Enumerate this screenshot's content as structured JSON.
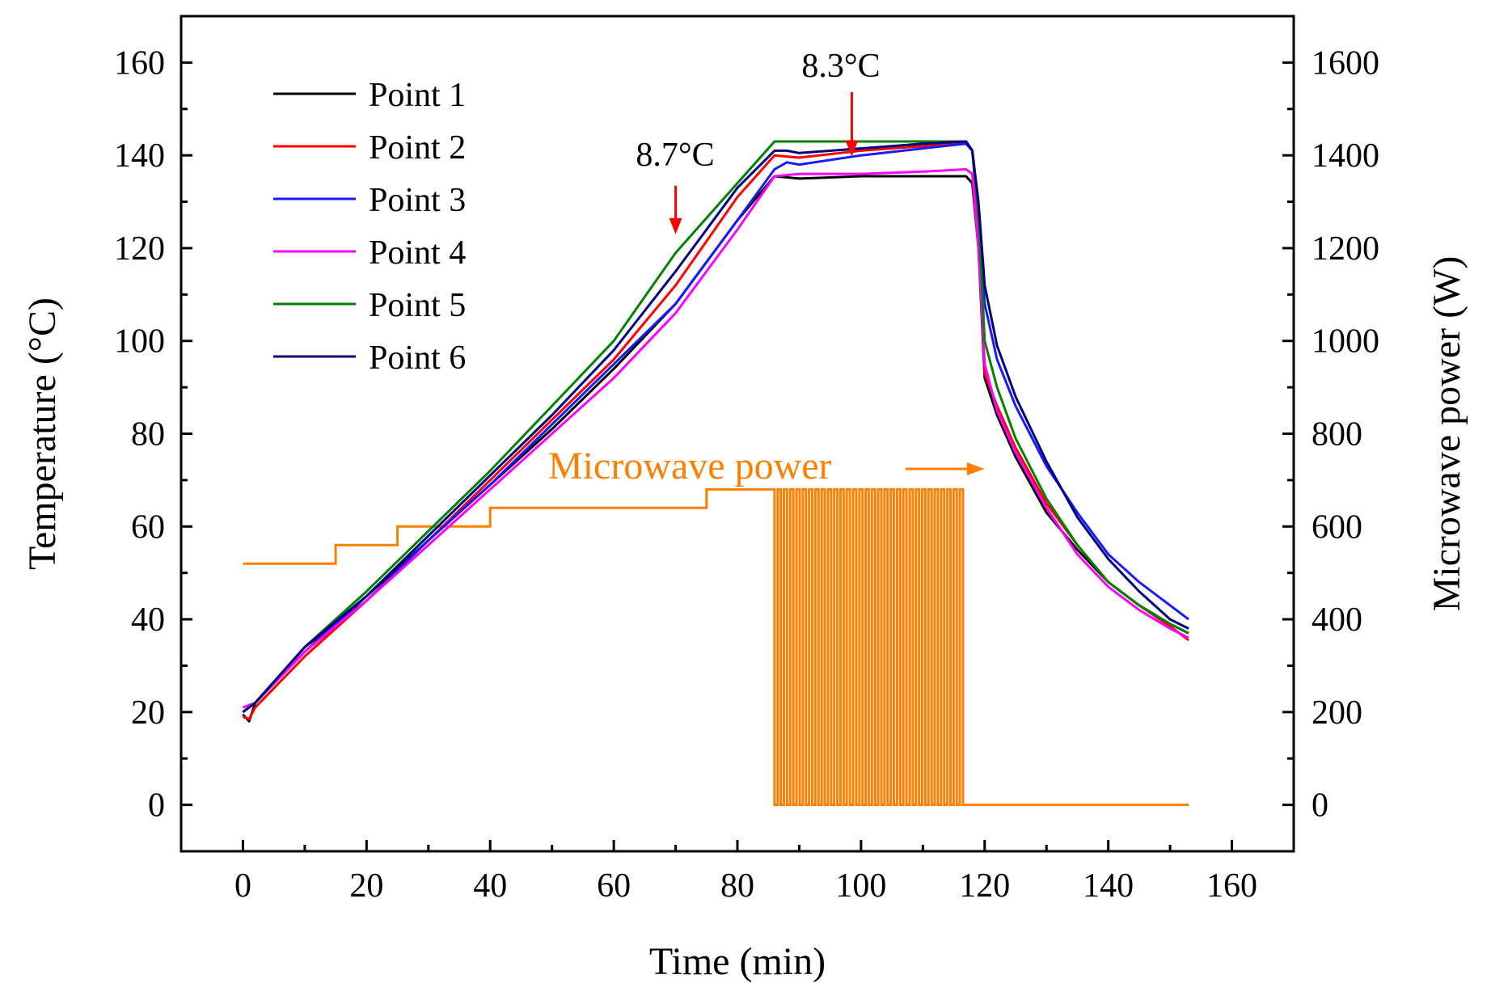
{
  "chart_data": {
    "type": "line",
    "title": "",
    "xlabel": "Time (min)",
    "ylabel": "Temperature (°C)",
    "y2label": "Microwave power (W)",
    "xlim": [
      -10,
      170
    ],
    "ylim": [
      -10,
      170
    ],
    "y2lim": [
      -100,
      1700
    ],
    "xticks": [
      0,
      20,
      40,
      60,
      80,
      100,
      120,
      140,
      160
    ],
    "yticks": [
      0,
      20,
      40,
      60,
      80,
      100,
      120,
      140,
      160
    ],
    "y2ticks": [
      0,
      200,
      400,
      600,
      800,
      1000,
      1200,
      1400,
      1600
    ],
    "legend_position": "top-left",
    "series": [
      {
        "name": "Point 1",
        "color": "#000000",
        "points": [
          [
            0,
            19.5
          ],
          [
            1,
            18
          ],
          [
            2,
            22
          ],
          [
            10,
            33
          ],
          [
            20,
            45
          ],
          [
            30,
            57
          ],
          [
            40,
            69
          ],
          [
            50,
            81
          ],
          [
            60,
            94
          ],
          [
            70,
            108
          ],
          [
            80,
            126
          ],
          [
            86,
            135.5
          ],
          [
            90,
            135
          ],
          [
            100,
            135.5
          ],
          [
            110,
            135.5
          ],
          [
            117,
            135.5
          ],
          [
            118,
            134
          ],
          [
            119,
            120
          ],
          [
            120,
            92
          ],
          [
            122,
            84
          ],
          [
            125,
            75
          ],
          [
            130,
            63
          ],
          [
            135,
            55
          ],
          [
            140,
            48
          ],
          [
            145,
            43
          ],
          [
            150,
            39
          ],
          [
            153,
            37
          ]
        ]
      },
      {
        "name": "Point 2",
        "color": "#ff0000",
        "points": [
          [
            0,
            19
          ],
          [
            1,
            18.5
          ],
          [
            2,
            21
          ],
          [
            10,
            32
          ],
          [
            20,
            44
          ],
          [
            30,
            57
          ],
          [
            40,
            70
          ],
          [
            50,
            83
          ],
          [
            60,
            96
          ],
          [
            70,
            112
          ],
          [
            80,
            131
          ],
          [
            86,
            140
          ],
          [
            90,
            139.5
          ],
          [
            100,
            141
          ],
          [
            110,
            142
          ],
          [
            117,
            142.5
          ],
          [
            118,
            141
          ],
          [
            119,
            125
          ],
          [
            120,
            93
          ],
          [
            122,
            86
          ],
          [
            125,
            77
          ],
          [
            130,
            65
          ],
          [
            135,
            56
          ],
          [
            140,
            48
          ],
          [
            145,
            43
          ],
          [
            150,
            38.5
          ],
          [
            153,
            35.5
          ]
        ]
      },
      {
        "name": "Point 3",
        "color": "#1a1aff",
        "points": [
          [
            0,
            20
          ],
          [
            2,
            22
          ],
          [
            10,
            34
          ],
          [
            20,
            44
          ],
          [
            30,
            57
          ],
          [
            40,
            69
          ],
          [
            50,
            82
          ],
          [
            60,
            95
          ],
          [
            70,
            108
          ],
          [
            80,
            126
          ],
          [
            86,
            137
          ],
          [
            88,
            138.5
          ],
          [
            90,
            138
          ],
          [
            100,
            140
          ],
          [
            110,
            141.5
          ],
          [
            117,
            142.5
          ],
          [
            118,
            141
          ],
          [
            119,
            128
          ],
          [
            120,
            108
          ],
          [
            122,
            96
          ],
          [
            125,
            86
          ],
          [
            130,
            73
          ],
          [
            135,
            63
          ],
          [
            140,
            54
          ],
          [
            145,
            48
          ],
          [
            150,
            43
          ],
          [
            153,
            40
          ]
        ]
      },
      {
        "name": "Point 4",
        "color": "#ff00ff",
        "points": [
          [
            0,
            21
          ],
          [
            2,
            22
          ],
          [
            10,
            33
          ],
          [
            20,
            44
          ],
          [
            30,
            56
          ],
          [
            40,
            68
          ],
          [
            50,
            80
          ],
          [
            60,
            92
          ],
          [
            70,
            106
          ],
          [
            80,
            124
          ],
          [
            86,
            135.5
          ],
          [
            90,
            136
          ],
          [
            100,
            136
          ],
          [
            110,
            136.5
          ],
          [
            117,
            137
          ],
          [
            118,
            136
          ],
          [
            119,
            120
          ],
          [
            120,
            95
          ],
          [
            122,
            85
          ],
          [
            125,
            76
          ],
          [
            130,
            64
          ],
          [
            135,
            54
          ],
          [
            140,
            47
          ],
          [
            145,
            42
          ],
          [
            150,
            38
          ],
          [
            153,
            36
          ]
        ]
      },
      {
        "name": "Point 5",
        "color": "#008000",
        "points": [
          [
            0,
            20
          ],
          [
            2,
            22
          ],
          [
            10,
            34
          ],
          [
            20,
            46
          ],
          [
            30,
            59
          ],
          [
            40,
            72
          ],
          [
            50,
            86
          ],
          [
            60,
            100
          ],
          [
            70,
            119
          ],
          [
            80,
            134
          ],
          [
            86,
            143
          ],
          [
            90,
            143
          ],
          [
            100,
            143
          ],
          [
            110,
            143
          ],
          [
            117,
            143
          ],
          [
            118,
            141
          ],
          [
            119,
            128
          ],
          [
            120,
            100
          ],
          [
            122,
            90
          ],
          [
            125,
            79
          ],
          [
            130,
            66
          ],
          [
            135,
            56
          ],
          [
            140,
            48
          ],
          [
            145,
            43
          ],
          [
            150,
            39
          ],
          [
            153,
            37
          ]
        ]
      },
      {
        "name": "Point 6",
        "color": "#000080",
        "points": [
          [
            0,
            20
          ],
          [
            2,
            22
          ],
          [
            10,
            34
          ],
          [
            20,
            45
          ],
          [
            30,
            58
          ],
          [
            40,
            71
          ],
          [
            50,
            84
          ],
          [
            60,
            98
          ],
          [
            70,
            115
          ],
          [
            80,
            133
          ],
          [
            86,
            141
          ],
          [
            88,
            141
          ],
          [
            90,
            140.5
          ],
          [
            100,
            141.5
          ],
          [
            110,
            142.5
          ],
          [
            117,
            143
          ],
          [
            118,
            141
          ],
          [
            119,
            130
          ],
          [
            120,
            112
          ],
          [
            122,
            99
          ],
          [
            125,
            88
          ],
          [
            130,
            74
          ],
          [
            135,
            62
          ],
          [
            140,
            53
          ],
          [
            145,
            46
          ],
          [
            150,
            40
          ],
          [
            153,
            38
          ]
        ]
      }
    ],
    "power_series": {
      "name": "Microwave power",
      "color": "#ff8000",
      "axis": "right",
      "steps": [
        [
          0,
          520
        ],
        [
          15,
          520
        ],
        [
          15,
          560
        ],
        [
          25,
          560
        ],
        [
          25,
          600
        ],
        [
          40,
          600
        ],
        [
          40,
          640
        ],
        [
          75,
          640
        ],
        [
          75,
          680
        ],
        [
          86,
          680
        ]
      ],
      "pulse_start": 86,
      "pulse_end": 116.5,
      "pulse_count": 30,
      "pulse_high": 680,
      "pulse_low": 0,
      "tail": [
        [
          116.5,
          0
        ],
        [
          153,
          0
        ]
      ]
    },
    "annotations": [
      {
        "text": "8.7°C",
        "at": [
          70,
          123
        ],
        "color": "#ff0000"
      },
      {
        "text": "8.3°C",
        "at": [
          98.5,
          145
        ],
        "color": "#ff0000"
      },
      {
        "text": "Microwave power",
        "at": [
          120,
          73
        ],
        "color": "#ff8000"
      }
    ]
  }
}
